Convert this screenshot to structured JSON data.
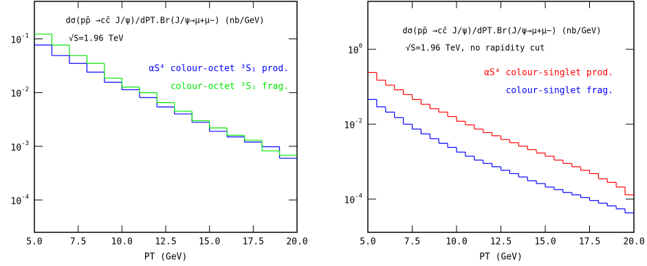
{
  "chart_data": [
    {
      "type": "histogram",
      "title": "dσ(pp̄ →cc̄ J/ψ)/dPT.Br(J/ψ→μ+μ−) (nb/GeV)",
      "subtitle": "√S=1.96 TeV",
      "xlabel": "PT  (GeV)",
      "log_y": true,
      "legend": "upper right",
      "xlim": [
        5,
        20
      ],
      "ylim": [
        2.5e-05,
        0.5
      ],
      "xticks": [
        {
          "value": 5,
          "label": "5.0"
        },
        {
          "value": 7.5,
          "label": "7.5"
        },
        {
          "value": 10,
          "label": "10.0"
        },
        {
          "value": 12.5,
          "label": "12.5"
        },
        {
          "value": 15,
          "label": "15.0"
        },
        {
          "value": 17.5,
          "label": "17.5"
        },
        {
          "value": 20,
          "label": "20.0"
        }
      ],
      "yticks": [
        {
          "value": 0.1,
          "label": "10",
          "exponent": "-1"
        },
        {
          "value": 0.01,
          "label": "10",
          "exponent": "-2"
        },
        {
          "value": 0.001,
          "label": "10",
          "exponent": "-3"
        },
        {
          "value": 0.0001,
          "label": "10",
          "exponent": "-4"
        }
      ],
      "bins": [
        5,
        6,
        7,
        8,
        9,
        10,
        11,
        12,
        13,
        14,
        15,
        16,
        17,
        18,
        19,
        20
      ],
      "series": [
        {
          "name": "αS⁴ colour-octet ³S₁ prod.",
          "color": "#0000ff",
          "values": [
            0.077,
            0.049,
            0.035,
            0.024,
            0.0156,
            0.0113,
            0.0081,
            0.0054,
            0.004,
            0.0028,
            0.0019,
            0.0015,
            0.0012,
            0.00098,
            0.0006
          ]
        },
        {
          "name": "colour-octet ³S₁ frag.",
          "color": "#00e600",
          "values": [
            0.123,
            0.077,
            0.049,
            0.035,
            0.0186,
            0.0127,
            0.01,
            0.0065,
            0.0045,
            0.003,
            0.0022,
            0.0016,
            0.0013,
            0.00082,
            0.00068
          ]
        }
      ]
    },
    {
      "type": "histogram",
      "title": "dσ(pp̄ →cc̄ J/ψ)/dPT.Br(J/ψ→μ+μ−) (nb/GeV)",
      "subtitle": "√S=1.96 TeV,   no rapidity cut",
      "xlabel": "PT  (GeV)",
      "log_y": true,
      "legend": "upper right",
      "xlim": [
        5,
        20
      ],
      "ylim": [
        1.3e-05,
        19
      ],
      "xticks": [
        {
          "value": 5,
          "label": "5.0"
        },
        {
          "value": 7.5,
          "label": "7.5"
        },
        {
          "value": 10,
          "label": "10.0"
        },
        {
          "value": 12.5,
          "label": "12.5"
        },
        {
          "value": 15,
          "label": "15.0"
        },
        {
          "value": 17.5,
          "label": "17.5"
        },
        {
          "value": 20,
          "label": "20.0"
        }
      ],
      "yticks": [
        {
          "value": 1,
          "label": "10",
          "exponent": "0"
        },
        {
          "value": 0.01,
          "label": "10",
          "exponent": "-2"
        },
        {
          "value": 0.0001,
          "label": "10",
          "exponent": "-4"
        }
      ],
      "bins": [
        5,
        5.5,
        6,
        6.5,
        7,
        7.5,
        8,
        8.5,
        9,
        9.5,
        10,
        10.5,
        11,
        11.5,
        12,
        12.5,
        13,
        13.5,
        14,
        14.5,
        15,
        15.5,
        16,
        16.5,
        17,
        17.5,
        18,
        18.5,
        19,
        19.5,
        20
      ],
      "series": [
        {
          "name": "αS⁴ colour-singlet prod.",
          "color": "#ff0000",
          "values": [
            0.24,
            0.15,
            0.11,
            0.083,
            0.062,
            0.046,
            0.034,
            0.026,
            0.021,
            0.016,
            0.012,
            0.0096,
            0.0074,
            0.006,
            0.0049,
            0.0039,
            0.0032,
            0.0026,
            0.0021,
            0.0017,
            0.0014,
            0.0011,
            0.0009,
            0.00073,
            0.00059,
            0.00048,
            0.00035,
            0.00028,
            0.00021,
            0.00013
          ]
        },
        {
          "name": "colour-singlet frag.",
          "color": "#0000ff",
          "values": [
            0.046,
            0.029,
            0.021,
            0.015,
            0.01,
            0.0074,
            0.0055,
            0.0041,
            0.0031,
            0.0024,
            0.0018,
            0.0014,
            0.0011,
            0.0009,
            0.00073,
            0.00059,
            0.00048,
            0.00039,
            0.00031,
            0.00026,
            0.00021,
            0.00018,
            0.00015,
            0.00013,
            0.00011,
            9.2e-05,
            7.8e-05,
            6.6e-05,
            5.5e-05,
            4.3e-05
          ]
        }
      ]
    }
  ]
}
